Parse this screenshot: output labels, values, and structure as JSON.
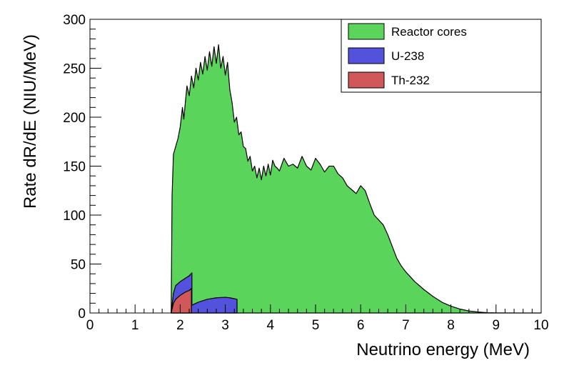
{
  "chart_data": {
    "type": "area",
    "xlabel": "Neutrino energy (MeV)",
    "ylabel": "Rate dR/dE (NIU/MeV)",
    "xlim": [
      0,
      10
    ],
    "ylim": [
      0,
      300
    ],
    "x_ticks": [
      "0",
      "1",
      "2",
      "3",
      "4",
      "5",
      "6",
      "7",
      "8",
      "9",
      "10"
    ],
    "y_ticks": [
      "0",
      "50",
      "100",
      "150",
      "200",
      "250",
      "300"
    ],
    "grid": false,
    "stacked": true,
    "legend_position": "top-right",
    "series": [
      {
        "name": "Reactor cores",
        "color": "#5ad45a",
        "points": [
          [
            1.8,
            0
          ],
          [
            1.82,
            120
          ],
          [
            1.85,
            162
          ],
          [
            1.9,
            170
          ],
          [
            1.95,
            178
          ],
          [
            2.0,
            190
          ],
          [
            2.05,
            210
          ],
          [
            2.08,
            198
          ],
          [
            2.12,
            218
          ],
          [
            2.15,
            232
          ],
          [
            2.2,
            222
          ],
          [
            2.25,
            242
          ],
          [
            2.3,
            230
          ],
          [
            2.35,
            250
          ],
          [
            2.4,
            238
          ],
          [
            2.45,
            256
          ],
          [
            2.5,
            244
          ],
          [
            2.55,
            262
          ],
          [
            2.6,
            248
          ],
          [
            2.65,
            267
          ],
          [
            2.7,
            252
          ],
          [
            2.75,
            272
          ],
          [
            2.8,
            255
          ],
          [
            2.85,
            274
          ],
          [
            2.9,
            250
          ],
          [
            2.95,
            262
          ],
          [
            3.0,
            243
          ],
          [
            3.05,
            256
          ],
          [
            3.1,
            228
          ],
          [
            3.15,
            215
          ],
          [
            3.2,
            195
          ],
          [
            3.25,
            200
          ],
          [
            3.3,
            182
          ],
          [
            3.35,
            185
          ],
          [
            3.4,
            170
          ],
          [
            3.45,
            168
          ],
          [
            3.5,
            155
          ],
          [
            3.55,
            160
          ],
          [
            3.6,
            145
          ],
          [
            3.65,
            150
          ],
          [
            3.7,
            138
          ],
          [
            3.75,
            148
          ],
          [
            3.8,
            136
          ],
          [
            3.85,
            150
          ],
          [
            3.9,
            140
          ],
          [
            3.95,
            152
          ],
          [
            4.0,
            141
          ],
          [
            4.05,
            156
          ],
          [
            4.1,
            150
          ],
          [
            4.15,
            148
          ],
          [
            4.2,
            145
          ],
          [
            4.3,
            158
          ],
          [
            4.4,
            150
          ],
          [
            4.5,
            152
          ],
          [
            4.6,
            148
          ],
          [
            4.7,
            160
          ],
          [
            4.8,
            150
          ],
          [
            4.9,
            146
          ],
          [
            5.0,
            158
          ],
          [
            5.1,
            152
          ],
          [
            5.2,
            144
          ],
          [
            5.3,
            150
          ],
          [
            5.4,
            150
          ],
          [
            5.5,
            142
          ],
          [
            5.6,
            138
          ],
          [
            5.7,
            130
          ],
          [
            5.8,
            126
          ],
          [
            5.9,
            122
          ],
          [
            6.0,
            130
          ],
          [
            6.1,
            125
          ],
          [
            6.2,
            112
          ],
          [
            6.3,
            100
          ],
          [
            6.4,
            95
          ],
          [
            6.5,
            90
          ],
          [
            6.6,
            80
          ],
          [
            6.7,
            68
          ],
          [
            6.8,
            56
          ],
          [
            6.9,
            48
          ],
          [
            7.0,
            42
          ],
          [
            7.2,
            32
          ],
          [
            7.4,
            24
          ],
          [
            7.6,
            17
          ],
          [
            7.8,
            11
          ],
          [
            8.0,
            7
          ],
          [
            8.2,
            4
          ],
          [
            8.4,
            2
          ],
          [
            8.6,
            1
          ],
          [
            8.8,
            0.3
          ],
          [
            9.0,
            0.1
          ],
          [
            9.5,
            0
          ],
          [
            10.0,
            0
          ]
        ]
      },
      {
        "name": "U-238",
        "color": "#5252dd",
        "points": [
          [
            1.8,
            0
          ],
          [
            1.85,
            20
          ],
          [
            1.9,
            28
          ],
          [
            2.0,
            32
          ],
          [
            2.1,
            35
          ],
          [
            2.2,
            38
          ],
          [
            2.26,
            41
          ],
          [
            2.26,
            8
          ],
          [
            2.4,
            11
          ],
          [
            2.6,
            14
          ],
          [
            2.8,
            15.5
          ],
          [
            3.0,
            16
          ],
          [
            3.1,
            15.5
          ],
          [
            3.26,
            14
          ],
          [
            3.26,
            0
          ]
        ]
      },
      {
        "name": "Th-232",
        "color": "#d15858",
        "points": [
          [
            1.8,
            0
          ],
          [
            1.85,
            10
          ],
          [
            1.9,
            14
          ],
          [
            2.0,
            18
          ],
          [
            2.1,
            21
          ],
          [
            2.2,
            23
          ],
          [
            2.25,
            25
          ],
          [
            2.25,
            0
          ]
        ]
      }
    ]
  }
}
